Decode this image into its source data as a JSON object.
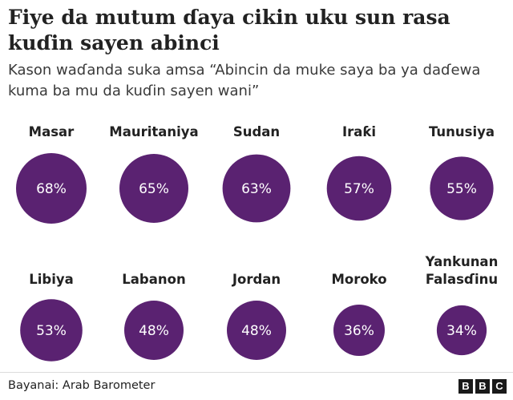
{
  "title": "Fiye da mutum ɗaya cikin uku sun rasa kuɗin sayen abinci",
  "subtitle": "Kason waɗanda suka amsa “Abincin da muke saya ba ya daɗewa kuma ba mu da kuɗin sayen wani”",
  "source": "Bayanai: Arab Barometer",
  "logo": [
    "B",
    "B",
    "C"
  ],
  "colors": {
    "circle": "#5a2271",
    "value_text": "#ffffff",
    "label_text": "#222222"
  },
  "chart_data": {
    "type": "proportional-circles",
    "unit": "%",
    "categories": [
      "Masar",
      "Mauritaniya",
      "Sudan",
      "Iraƙi",
      "Tunusiya",
      "Libiya",
      "Labanon",
      "Jordan",
      "Moroko",
      "Yankunan Falasɗinu"
    ],
    "values": [
      68,
      65,
      63,
      57,
      55,
      53,
      48,
      48,
      36,
      34
    ],
    "value_labels": [
      "68%",
      "65%",
      "63%",
      "57%",
      "55%",
      "53%",
      "48%",
      "48%",
      "36%",
      "34%"
    ],
    "layout": "2 rows of 5"
  }
}
